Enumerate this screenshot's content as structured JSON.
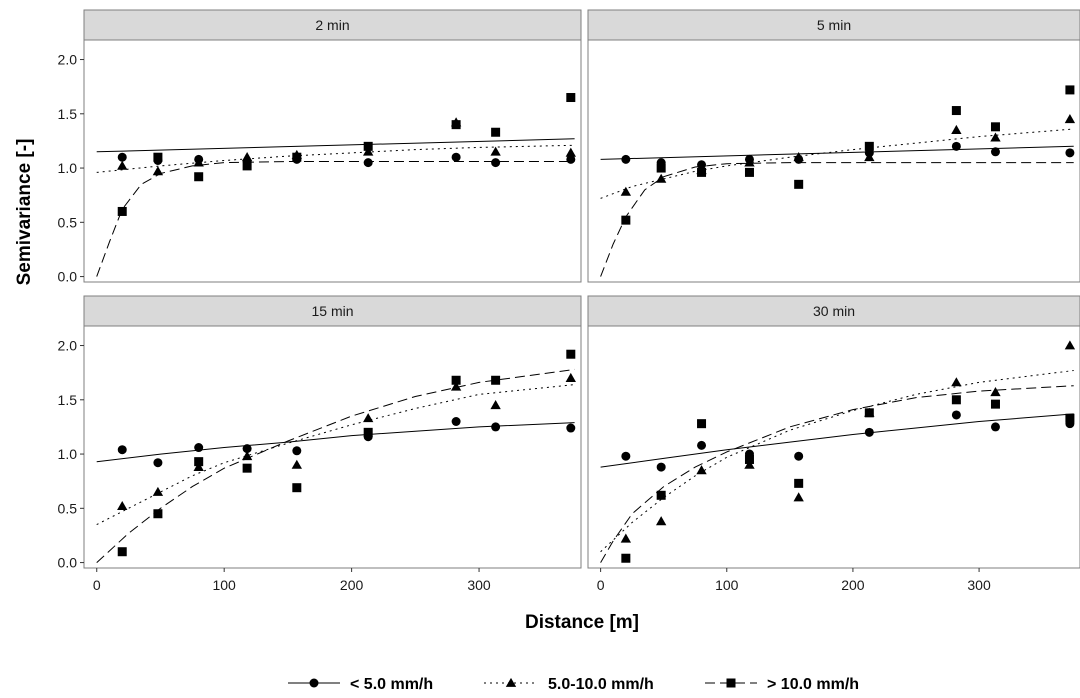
{
  "chart_data": {
    "type": "scatter",
    "xlabel": "Distance [m]",
    "ylabel": "Semivariance [-]",
    "xlim": [
      -10,
      380
    ],
    "ylim": [
      -0.05,
      2.18
    ],
    "x_ticks": [
      0,
      100,
      200,
      300
    ],
    "x_tick_labels": [
      "0",
      "100",
      "200",
      "300"
    ],
    "y_ticks": [
      0.0,
      0.5,
      1.0,
      1.5,
      2.0
    ],
    "y_tick_labels": [
      "0.0",
      "0.5",
      "1.0",
      "1.5",
      "2.0"
    ],
    "grid": false,
    "legend_position": "bottom",
    "series_styles": [
      {
        "marker": "circle",
        "line": "solid",
        "color": "#000000"
      },
      {
        "marker": "triangle",
        "line": "dotted",
        "color": "#000000"
      },
      {
        "marker": "square",
        "line": "dashed",
        "color": "#000000"
      }
    ],
    "legend": [
      "< 5.0 mm/h",
      "5.0-10.0 mm/h",
      "> 10.0 mm/h"
    ],
    "panels": [
      {
        "title": "2 min",
        "series": [
          {
            "name": "< 5.0 mm/h",
            "x": [
              20,
              48,
              80,
              118,
              157,
              213,
              282,
              313,
              372
            ],
            "y": [
              1.1,
              1.07,
              1.08,
              1.06,
              1.08,
              1.05,
              1.1,
              1.05,
              1.08
            ],
            "fit": {
              "x": [
                0,
                375
              ],
              "y": [
                1.15,
                1.27
              ]
            }
          },
          {
            "name": "5.0-10.0 mm/h",
            "x": [
              20,
              48,
              80,
              118,
              157,
              213,
              282,
              313,
              372
            ],
            "y": [
              1.02,
              0.97,
              1.05,
              1.1,
              1.12,
              1.15,
              1.42,
              1.15,
              1.14
            ],
            "fit": {
              "x": [
                0,
                50,
                100,
                150,
                200,
                250,
                300,
                375
              ],
              "y": [
                0.96,
                1.02,
                1.07,
                1.11,
                1.14,
                1.17,
                1.19,
                1.21
              ]
            }
          },
          {
            "name": "> 10.0 mm/h",
            "x": [
              20,
              48,
              80,
              118,
              157,
              213,
              282,
              313,
              372
            ],
            "y": [
              0.6,
              1.1,
              0.92,
              1.02,
              1.1,
              1.2,
              1.4,
              1.33,
              1.65
            ],
            "fit": {
              "x": [
                0,
                10,
                20,
                35,
                50,
                75,
                100,
                150,
                200,
                375
              ],
              "y": [
                0.0,
                0.32,
                0.62,
                0.85,
                0.95,
                1.02,
                1.05,
                1.06,
                1.06,
                1.06
              ]
            }
          }
        ]
      },
      {
        "title": "5 min",
        "series": [
          {
            "name": "< 5.0 mm/h",
            "x": [
              20,
              48,
              80,
              118,
              157,
              213,
              282,
              313,
              372
            ],
            "y": [
              1.08,
              1.05,
              1.03,
              1.08,
              1.08,
              1.14,
              1.2,
              1.15,
              1.14
            ],
            "fit": {
              "x": [
                0,
                375
              ],
              "y": [
                1.08,
                1.2
              ]
            }
          },
          {
            "name": "5.0-10.0 mm/h",
            "x": [
              20,
              48,
              80,
              118,
              157,
              213,
              282,
              313,
              372
            ],
            "y": [
              0.78,
              0.9,
              0.98,
              1.05,
              1.1,
              1.1,
              1.35,
              1.28,
              1.45
            ],
            "fit": {
              "x": [
                0,
                25,
                50,
                75,
                100,
                150,
                200,
                250,
                300,
                375
              ],
              "y": [
                0.72,
                0.83,
                0.9,
                0.97,
                1.02,
                1.1,
                1.17,
                1.23,
                1.29,
                1.36
              ]
            }
          },
          {
            "name": "> 10.0 mm/h",
            "x": [
              20,
              48,
              80,
              118,
              157,
              213,
              282,
              313,
              372
            ],
            "y": [
              0.52,
              1.0,
              0.96,
              0.96,
              0.85,
              1.2,
              1.53,
              1.38,
              1.72
            ],
            "fit": {
              "x": [
                0,
                10,
                20,
                35,
                50,
                75,
                100,
                150,
                200,
                375
              ],
              "y": [
                0.0,
                0.3,
                0.55,
                0.8,
                0.92,
                1.01,
                1.04,
                1.05,
                1.05,
                1.05
              ]
            }
          }
        ]
      },
      {
        "title": "15 min",
        "series": [
          {
            "name": "< 5.0 mm/h",
            "x": [
              20,
              48,
              80,
              118,
              157,
              213,
              282,
              313,
              372
            ],
            "y": [
              1.04,
              0.92,
              1.06,
              1.05,
              1.03,
              1.16,
              1.3,
              1.25,
              1.24
            ],
            "fit": {
              "x": [
                0,
                50,
                100,
                150,
                200,
                250,
                300,
                375
              ],
              "y": [
                0.93,
                1.0,
                1.06,
                1.11,
                1.17,
                1.21,
                1.25,
                1.29
              ]
            }
          },
          {
            "name": "5.0-10.0 mm/h",
            "x": [
              20,
              48,
              80,
              118,
              157,
              213,
              282,
              313,
              372
            ],
            "y": [
              0.52,
              0.65,
              0.88,
              0.98,
              0.9,
              1.33,
              1.62,
              1.45,
              1.7
            ],
            "fit": {
              "x": [
                0,
                25,
                50,
                75,
                100,
                150,
                200,
                250,
                300,
                375
              ],
              "y": [
                0.35,
                0.5,
                0.65,
                0.8,
                0.92,
                1.1,
                1.27,
                1.42,
                1.55,
                1.64
              ]
            }
          },
          {
            "name": "> 10.0 mm/h",
            "x": [
              20,
              48,
              80,
              118,
              157,
              213,
              282,
              313,
              372
            ],
            "y": [
              0.1,
              0.45,
              0.93,
              0.87,
              0.69,
              1.2,
              1.68,
              1.68,
              1.92
            ],
            "fit": {
              "x": [
                0,
                25,
                50,
                75,
                100,
                150,
                200,
                250,
                300,
                375
              ],
              "y": [
                0.0,
                0.27,
                0.5,
                0.7,
                0.87,
                1.12,
                1.35,
                1.53,
                1.66,
                1.78
              ]
            }
          }
        ]
      },
      {
        "title": "30 min",
        "series": [
          {
            "name": "< 5.0 mm/h",
            "x": [
              20,
              48,
              80,
              118,
              157,
              213,
              282,
              313,
              372
            ],
            "y": [
              0.98,
              0.88,
              1.08,
              1.0,
              0.98,
              1.2,
              1.36,
              1.25,
              1.28
            ],
            "fit": {
              "x": [
                0,
                50,
                100,
                150,
                200,
                250,
                300,
                375
              ],
              "y": [
                0.88,
                0.96,
                1.04,
                1.11,
                1.18,
                1.24,
                1.3,
                1.37
              ]
            }
          },
          {
            "name": "5.0-10.0 mm/h",
            "x": [
              20,
              48,
              80,
              118,
              157,
              213,
              282,
              313,
              372
            ],
            "y": [
              0.22,
              0.38,
              0.85,
              0.9,
              0.6,
              1.38,
              1.66,
              1.57,
              2.0
            ],
            "fit": {
              "x": [
                0,
                25,
                50,
                75,
                100,
                150,
                200,
                250,
                300,
                375
              ],
              "y": [
                0.1,
                0.37,
                0.6,
                0.8,
                0.97,
                1.22,
                1.4,
                1.55,
                1.66,
                1.77
              ]
            }
          },
          {
            "name": "> 10.0 mm/h",
            "x": [
              20,
              48,
              80,
              118,
              157,
              213,
              282,
              313,
              372
            ],
            "y": [
              0.04,
              0.62,
              1.28,
              0.95,
              0.73,
              1.38,
              1.5,
              1.46,
              1.33
            ],
            "fit": {
              "x": [
                0,
                10,
                25,
                50,
                75,
                100,
                150,
                200,
                250,
                300,
                375
              ],
              "y": [
                0.0,
                0.2,
                0.45,
                0.7,
                0.88,
                1.02,
                1.25,
                1.41,
                1.52,
                1.58,
                1.63
              ]
            }
          }
        ]
      }
    ]
  }
}
